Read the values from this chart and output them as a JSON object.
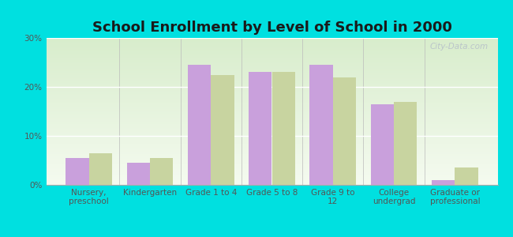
{
  "title": "School Enrollment by Level of School in 2000",
  "categories": [
    "Nursery,\npreschool",
    "Kindergarten",
    "Grade 1 to 4",
    "Grade 5 to 8",
    "Grade 9 to\n12",
    "College\nundergrad",
    "Graduate or\nprofessional"
  ],
  "edisto_values": [
    5.5,
    4.5,
    24.5,
    23.0,
    24.5,
    16.5,
    1.0
  ],
  "sc_values": [
    6.5,
    5.5,
    22.5,
    23.0,
    22.0,
    17.0,
    3.5
  ],
  "edisto_color": "#c9a0dc",
  "sc_color": "#c8d4a0",
  "background_color": "#00e0e0",
  "plot_bg_top": "#d8edcc",
  "plot_bg_bottom": "#f5fbf0",
  "ylim": [
    0,
    30
  ],
  "yticks": [
    0,
    10,
    20,
    30
  ],
  "ytick_labels": [
    "0%",
    "10%",
    "20%",
    "30%"
  ],
  "bar_width": 0.38,
  "title_fontsize": 13,
  "tick_fontsize": 7.5,
  "legend_fontsize": 8.5,
  "watermark": "City-Data.com"
}
